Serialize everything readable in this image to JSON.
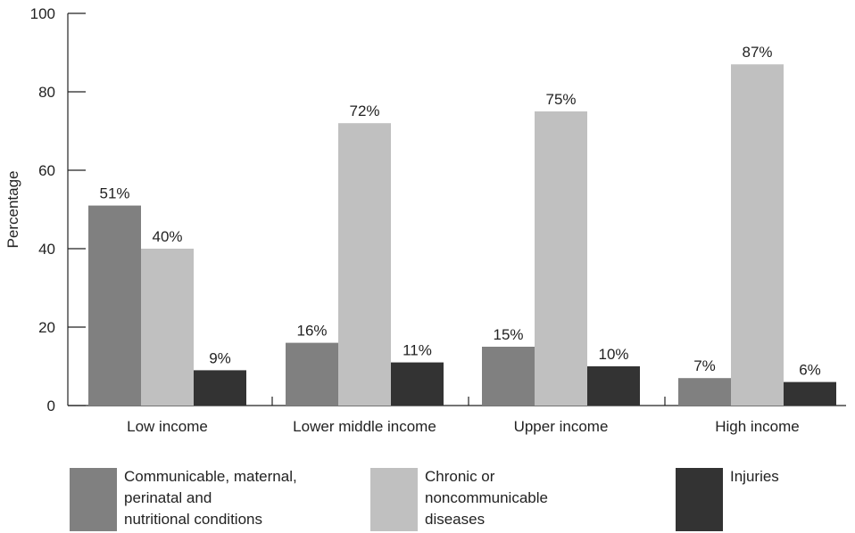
{
  "chart_data": {
    "type": "bar",
    "title": "",
    "xlabel": "",
    "ylabel": "Percentage",
    "ylim": [
      0,
      100
    ],
    "yticks": [
      0,
      20,
      40,
      60,
      80,
      100
    ],
    "categories": [
      "Low income",
      "Lower middle income",
      "Upper income",
      "High income"
    ],
    "series": [
      {
        "name": "Communicable, maternal, perinatal and nutritional conditions",
        "values": [
          51,
          16,
          15,
          7
        ],
        "labels": [
          "51%",
          "16%",
          "15%",
          "7%"
        ],
        "color": "#808080"
      },
      {
        "name": "Chronic or noncommunicable diseases",
        "values": [
          40,
          72,
          75,
          87
        ],
        "labels": [
          "40%",
          "72%",
          "75%",
          "87%"
        ],
        "color": "#c0c0c0"
      },
      {
        "name": "Injuries",
        "values": [
          9,
          11,
          10,
          6
        ],
        "labels": [
          "9%",
          "11%",
          "10%",
          "6%"
        ],
        "color": "#333333"
      }
    ],
    "legend": {
      "placement": "bottom",
      "items": [
        {
          "label": "Communicable, maternal,\nperinatal and\nnutritional conditions",
          "color": "#808080"
        },
        {
          "label": "Chronic or\nnoncommunicable\ndiseases",
          "color": "#c0c0c0"
        },
        {
          "label": "Injuries",
          "color": "#333333"
        }
      ]
    },
    "grid": false
  }
}
